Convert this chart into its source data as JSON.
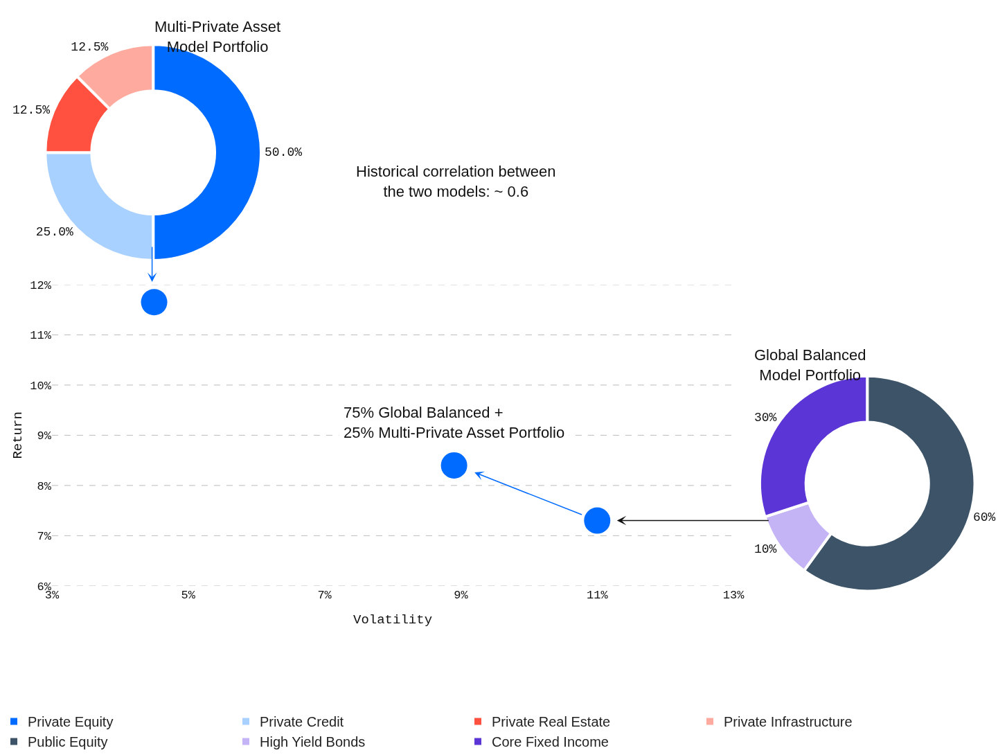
{
  "chart_data": [
    {
      "type": "donut",
      "title": "Multi-Private Asset\nModel Portfolio",
      "categories": [
        "Private Equity",
        "Private Credit",
        "Private Real Estate",
        "Private Infrastructure"
      ],
      "values": [
        50,
        25,
        12.5,
        12.5
      ],
      "value_labels": [
        "50.0%",
        "25.0%",
        "12.5%",
        "12.5%"
      ],
      "colors": [
        "#006bff",
        "#a9d1ff",
        "#ff5040",
        "#ffaa9e"
      ],
      "legend": "bottom"
    },
    {
      "type": "scatter",
      "xlabel": "Volatility",
      "ylabel": "Return",
      "x": [
        4.5,
        8.9,
        11.0
      ],
      "values": [
        11.65,
        8.4,
        7.3
      ],
      "color": "#006bff",
      "marker": "circle",
      "grid": "y",
      "xlim": [
        3,
        13
      ],
      "ylim": [
        6,
        12
      ],
      "xticks": [
        {
          "value": 3,
          "label": "3%"
        },
        {
          "value": 5,
          "label": "5%"
        },
        {
          "value": 7,
          "label": "7%"
        },
        {
          "value": 9,
          "label": "9%"
        },
        {
          "value": 11,
          "label": "11%"
        },
        {
          "value": 13,
          "label": "13%"
        }
      ],
      "yticks": [
        {
          "value": 6,
          "label": "6%"
        },
        {
          "value": 7,
          "label": "7%"
        },
        {
          "value": 8,
          "label": "8%"
        },
        {
          "value": 9,
          "label": "9%"
        },
        {
          "value": 10,
          "label": "10%"
        },
        {
          "value": 11,
          "label": "11%"
        },
        {
          "value": 12,
          "label": "12%"
        }
      ],
      "annotations": [
        "Historical correlation between\nthe two models: ~ 0.6",
        {
          "text": "75% Global Balanced +\n25% Multi-Private Asset Portfolio",
          "x": 8.9,
          "y": 8.4
        }
      ]
    },
    {
      "type": "donut",
      "title": "Global Balanced\nModel Portfolio",
      "categories": [
        "Public Equity",
        "High Yield Bonds",
        "Core Fixed Income"
      ],
      "values": [
        60,
        10,
        30
      ],
      "value_labels": [
        "60%",
        "10%",
        "30%"
      ],
      "colors": [
        "#3d5468",
        "#c4b4f5",
        "#5b35d5"
      ],
      "legend": "bottom"
    }
  ]
}
